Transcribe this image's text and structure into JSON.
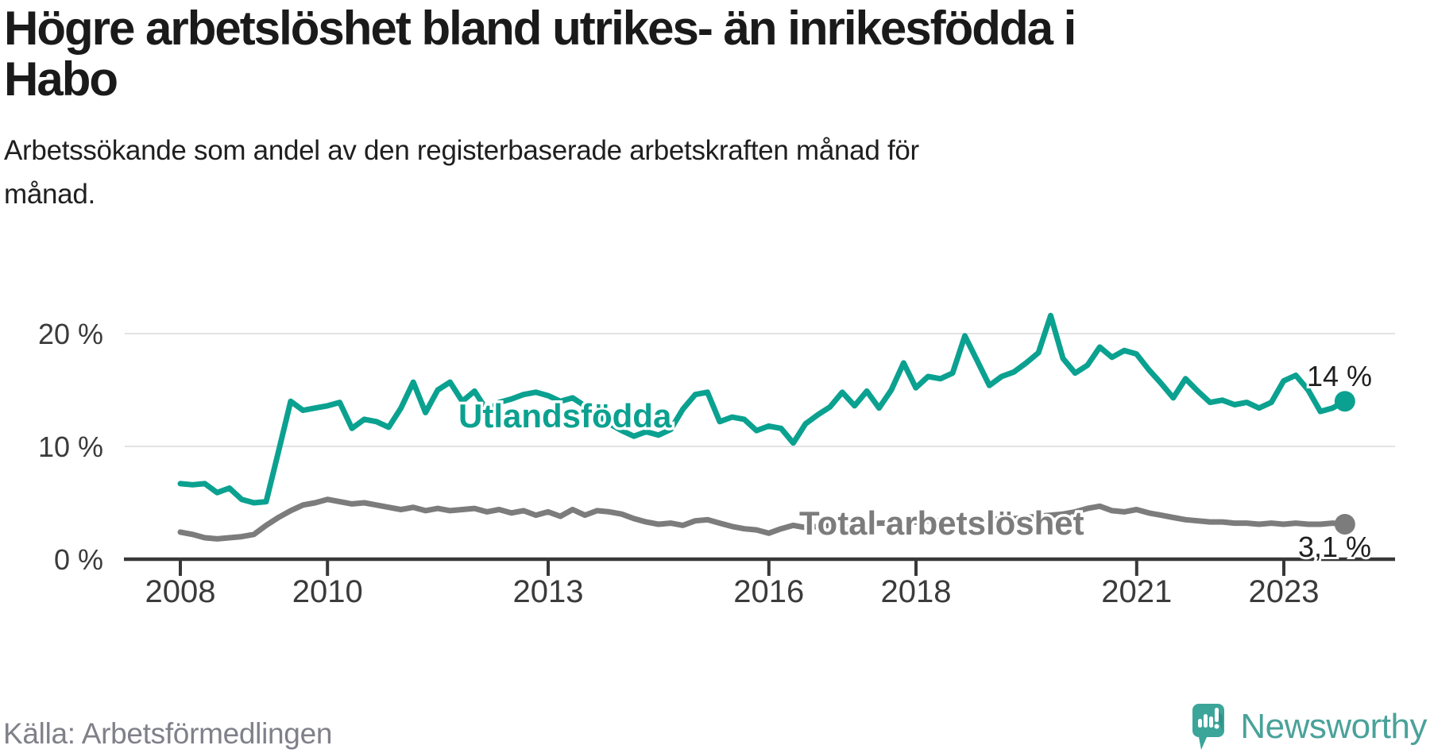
{
  "title": {
    "line1": "Högre arbetslöshet bland utrikes- än inrikesfödda i",
    "line2": "Habo"
  },
  "subtitle": {
    "line1": "Arbetssökande som andel av den registerbaserade arbetskraften månad för",
    "line2": "månad."
  },
  "source": "Källa: Arbetsförmedlingen",
  "branding": {
    "wordmark": "Newsworthy",
    "logo_icon": "speech-bubble-bar-chart-exclamation-icon"
  },
  "colors": {
    "accent_teal": "#0ba190",
    "series_gray": "#7c7c7c",
    "grid": "#e3e3e3",
    "axis": "#383838",
    "text_dark": "#1f1f1f",
    "tick_text": "#3b3b3b",
    "source_gray": "#80808a",
    "logo_teal": "#3ba59a",
    "wordmark_teal": "#4aa29a"
  },
  "chart_data": {
    "type": "line",
    "title": "Högre arbetslöshet bland utrikes- än inrikesfödda i Habo",
    "subtitle": "Arbetssökande som andel av den registerbaserade arbetskraften månad för månad.",
    "x_unit": "year (monthly data)",
    "x_start_year": 2008.0,
    "x_step_years": 0.1667,
    "x_range": [
      2008.0,
      2023.83
    ],
    "xticks": [
      2008,
      2010,
      2013,
      2016,
      2018,
      2021,
      2023
    ],
    "ylim": [
      0,
      22
    ],
    "yticks": [
      {
        "value": 0,
        "label": "0 %"
      },
      {
        "value": 10,
        "label": "10 %"
      },
      {
        "value": 20,
        "label": "20 %"
      }
    ],
    "grid": "horizontal",
    "legend_position": "inline-labels",
    "series": [
      {
        "name": "Utlandsfödda",
        "color": "#0ba190",
        "end_label": "14 %",
        "end_value": 14.0,
        "values": [
          6.7,
          6.6,
          6.7,
          5.9,
          6.3,
          5.3,
          5.0,
          5.1,
          9.5,
          14.0,
          13.2,
          13.4,
          13.6,
          13.9,
          11.6,
          12.4,
          12.2,
          11.7,
          13.4,
          15.7,
          13.0,
          15.0,
          15.7,
          14.0,
          14.9,
          13.2,
          13.9,
          14.2,
          14.6,
          14.8,
          14.5,
          14.0,
          14.3,
          13.6,
          12.8,
          12.0,
          11.4,
          10.9,
          11.3,
          11.0,
          11.5,
          13.3,
          14.6,
          14.8,
          12.2,
          12.6,
          12.4,
          11.4,
          11.8,
          11.6,
          10.3,
          12.0,
          12.8,
          13.5,
          14.8,
          13.6,
          14.9,
          13.4,
          15.0,
          17.4,
          15.2,
          16.2,
          16.0,
          16.5,
          19.8,
          17.6,
          15.4,
          16.2,
          16.6,
          17.4,
          18.3,
          21.6,
          17.8,
          16.5,
          17.2,
          18.8,
          17.9,
          18.5,
          18.2,
          16.8,
          15.6,
          14.3,
          16.0,
          14.9,
          13.9,
          14.1,
          13.7,
          13.9,
          13.4,
          13.9,
          15.8,
          16.3,
          15.0,
          13.1,
          13.4,
          14.0
        ]
      },
      {
        "name": "Total arbetslöshet",
        "color": "#7c7c7c",
        "end_label": "3,1 %",
        "end_value": 3.1,
        "values": [
          2.4,
          2.2,
          1.9,
          1.8,
          1.9,
          2.0,
          2.2,
          3.0,
          3.7,
          4.3,
          4.8,
          5.0,
          5.3,
          5.1,
          4.9,
          5.0,
          4.8,
          4.6,
          4.4,
          4.6,
          4.3,
          4.5,
          4.3,
          4.4,
          4.5,
          4.2,
          4.4,
          4.1,
          4.3,
          3.9,
          4.2,
          3.8,
          4.4,
          3.9,
          4.3,
          4.2,
          4.0,
          3.6,
          3.3,
          3.1,
          3.2,
          3.0,
          3.4,
          3.5,
          3.2,
          2.9,
          2.7,
          2.6,
          2.3,
          2.7,
          3.0,
          2.8,
          2.9,
          3.0,
          3.0,
          3.1,
          3.1,
          3.2,
          3.2,
          3.3,
          3.3,
          3.4,
          3.4,
          3.5,
          3.4,
          3.5,
          3.5,
          3.6,
          3.6,
          3.7,
          3.8,
          3.9,
          4.0,
          4.2,
          4.5,
          4.7,
          4.3,
          4.2,
          4.4,
          4.1,
          3.9,
          3.7,
          3.5,
          3.4,
          3.3,
          3.3,
          3.2,
          3.2,
          3.1,
          3.2,
          3.1,
          3.2,
          3.1,
          3.1,
          3.2,
          3.1
        ]
      }
    ]
  }
}
